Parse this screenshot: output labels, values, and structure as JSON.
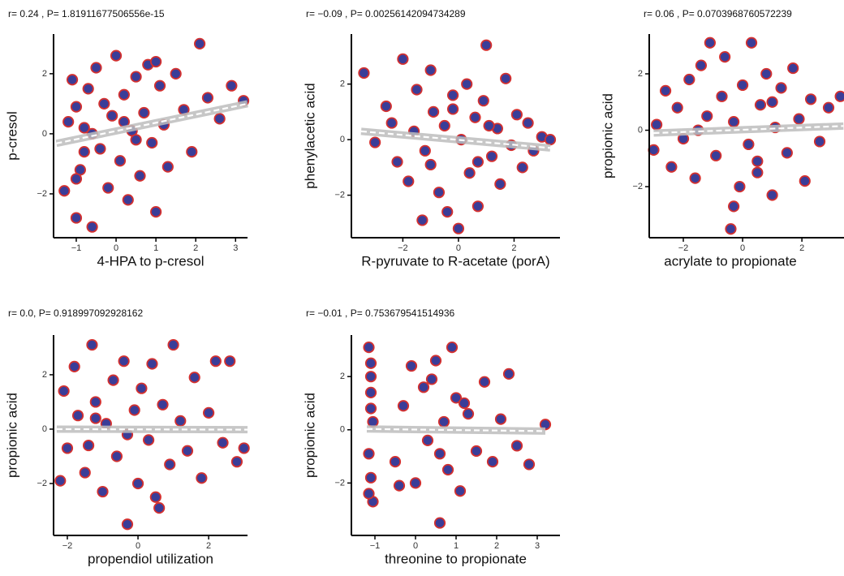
{
  "chart_data": [
    {
      "type": "scatter",
      "title": "r= 0.24 ,  P= 1.81911677506556e-15",
      "xlabel": "4-HPA to p-cresol",
      "ylabel": "p-cresol",
      "color": "#3a3d98",
      "edge_color": "#d4302f",
      "xlim": [
        -1.57,
        3.3
      ],
      "ylim": [
        -3.46,
        3.32
      ],
      "xticks": [
        {
          "value": -1,
          "label": "−1"
        },
        0,
        1,
        2,
        3
      ],
      "yticks": [
        {
          "value": -2,
          "label": "−2"
        },
        0,
        2
      ],
      "x": [
        -1.3,
        -1.2,
        -1.1,
        -1.0,
        -1.0,
        -0.9,
        -0.8,
        -0.7,
        -0.6,
        -0.5,
        -0.4,
        -0.3,
        -0.2,
        -0.1,
        0.0,
        0.1,
        0.2,
        0.3,
        0.4,
        0.5,
        0.6,
        0.7,
        0.8,
        0.9,
        1.0,
        1.1,
        1.2,
        1.3,
        1.5,
        1.7,
        1.9,
        2.1,
        2.3,
        2.6,
        2.9,
        3.2,
        -0.6,
        1.0,
        -1.0,
        0.5,
        0.2,
        -0.8
      ],
      "y": [
        -1.9,
        0.4,
        1.8,
        -2.8,
        0.9,
        -1.2,
        0.2,
        1.5,
        -3.1,
        2.2,
        -0.5,
        1.0,
        -1.8,
        0.6,
        2.6,
        -0.9,
        1.3,
        -2.2,
        0.1,
        1.9,
        -1.4,
        0.7,
        2.3,
        -0.3,
        -2.6,
        1.6,
        0.3,
        -1.1,
        2.0,
        0.8,
        -0.6,
        3.0,
        1.2,
        0.5,
        1.6,
        1.1,
        0.0,
        2.4,
        -1.5,
        -0.2,
        0.4,
        -0.6
      ],
      "fit_x": [
        -1.5,
        3.3
      ],
      "fit_y": [
        -0.32,
        1.0
      ]
    },
    {
      "type": "scatter",
      "title": "r= −0.09 ,  P= 0.00256142094734289",
      "xlabel": "R-pyruvate to R-acetate (porA)",
      "ylabel": "phenylacetic acid",
      "color": "#3a3d98",
      "edge_color": "#d4302f",
      "xlim": [
        -3.85,
        3.65
      ],
      "ylim": [
        -3.53,
        3.8
      ],
      "xticks": [
        {
          "value": -2,
          "label": "−2"
        },
        0,
        2
      ],
      "yticks": [
        {
          "value": -2,
          "label": "−2"
        },
        0,
        2
      ],
      "x": [
        -3.4,
        -3.0,
        -2.6,
        -2.4,
        -2.2,
        -2.0,
        -1.8,
        -1.6,
        -1.5,
        -1.3,
        -1.2,
        -1.0,
        -0.9,
        -0.7,
        -0.5,
        -0.4,
        -0.2,
        0.0,
        0.1,
        0.3,
        0.4,
        0.6,
        0.7,
        0.9,
        1.0,
        1.2,
        1.4,
        1.5,
        1.7,
        1.9,
        2.1,
        2.3,
        2.5,
        2.7,
        3.0,
        3.3,
        -1.0,
        -0.2,
        0.7,
        1.1
      ],
      "y": [
        2.4,
        -0.1,
        1.2,
        0.6,
        -0.8,
        2.9,
        -1.5,
        0.3,
        1.8,
        -2.9,
        -0.4,
        2.5,
        1.0,
        -1.9,
        0.5,
        -2.6,
        1.6,
        -3.2,
        0.0,
        2.0,
        -1.2,
        0.8,
        -2.4,
        1.4,
        3.4,
        -0.6,
        0.4,
        -1.6,
        2.2,
        -0.2,
        0.9,
        -1.0,
        0.6,
        -0.4,
        0.1,
        0.0,
        -0.9,
        1.1,
        -0.8,
        0.5
      ],
      "fit_x": [
        -3.5,
        3.3
      ],
      "fit_y": [
        0.3,
        -0.3
      ]
    },
    {
      "type": "scatter",
      "title": "r= 0.06 ,  P= 0.0703968760572239",
      "xlabel": "acrylate to propionate",
      "ylabel": "propionic acid",
      "color": "#3a3d98",
      "edge_color": "#d4302f",
      "xlim": [
        -3.15,
        3.42
      ],
      "ylim": [
        -3.81,
        3.41
      ],
      "xticks": [
        {
          "value": -2,
          "label": "−2"
        },
        0,
        2
      ],
      "yticks": [
        {
          "value": -2,
          "label": "−2"
        },
        0,
        2
      ],
      "x": [
        -3.0,
        -2.9,
        -2.6,
        -2.4,
        -2.2,
        -2.0,
        -1.8,
        -1.6,
        -1.4,
        -1.2,
        -1.1,
        -0.9,
        -0.7,
        -0.6,
        -0.4,
        -0.3,
        -0.1,
        0.0,
        0.2,
        0.3,
        0.5,
        0.6,
        0.8,
        1.0,
        1.1,
        1.3,
        1.5,
        1.7,
        1.9,
        2.1,
        2.3,
        2.6,
        2.9,
        3.3,
        -0.3,
        0.5,
        -1.5,
        1.0
      ],
      "y": [
        -0.7,
        0.2,
        1.4,
        -1.3,
        0.8,
        -0.3,
        1.8,
        -1.7,
        2.3,
        0.5,
        3.1,
        -0.9,
        1.2,
        2.6,
        -3.5,
        0.3,
        -2.0,
        1.6,
        -0.5,
        3.1,
        -1.1,
        0.9,
        2.0,
        -2.3,
        0.1,
        1.5,
        -0.8,
        2.2,
        0.4,
        -1.8,
        1.1,
        -0.4,
        0.8,
        1.2,
        -2.7,
        -1.5,
        0.0,
        1.0
      ],
      "fit_x": [
        -3.0,
        3.4
      ],
      "fit_y": [
        -0.1,
        0.15
      ]
    },
    {
      "type": "scatter",
      "title": "r= 0.0,  P= 0.918997092928162",
      "xlabel": "propendiol utilization",
      "ylabel": "propionic acid",
      "color": "#3a3d98",
      "edge_color": "#d4302f",
      "xlim": [
        -2.39,
        3.1
      ],
      "ylim": [
        -3.91,
        3.46
      ],
      "xticks": [
        {
          "value": -2,
          "label": "−2"
        },
        0,
        2
      ],
      "yticks": [
        {
          "value": -2,
          "label": "−2"
        },
        0,
        2
      ],
      "x": [
        -2.2,
        -2.1,
        -2.0,
        -1.8,
        -1.7,
        -1.5,
        -1.3,
        -1.2,
        -1.0,
        -0.9,
        -0.7,
        -0.6,
        -0.4,
        -0.3,
        -0.1,
        0.0,
        0.1,
        0.3,
        0.4,
        0.6,
        0.7,
        0.9,
        1.0,
        1.2,
        1.4,
        1.6,
        1.8,
        2.0,
        2.2,
        2.4,
        2.6,
        2.8,
        3.0,
        -0.3,
        0.5,
        -1.4,
        -1.2
      ],
      "y": [
        -1.9,
        1.4,
        -0.7,
        2.3,
        0.5,
        -1.6,
        3.1,
        1.0,
        -2.3,
        0.2,
        1.8,
        -1.0,
        2.5,
        -3.5,
        0.7,
        -2.0,
        1.5,
        -0.4,
        2.4,
        -2.9,
        0.9,
        -1.3,
        3.1,
        0.3,
        -0.8,
        1.9,
        -1.8,
        0.6,
        2.5,
        -0.5,
        2.5,
        -1.2,
        -0.7,
        -0.2,
        -2.5,
        -0.6,
        0.4
      ],
      "fit_x": [
        -2.3,
        3.1
      ],
      "fit_y": [
        0.0,
        -0.02
      ]
    },
    {
      "type": "scatter",
      "title": "r= −0.01 ,  P= 0.753679541514936",
      "xlabel": "threonine to propionate",
      "ylabel": "propionic acid",
      "color": "#3a3d98",
      "edge_color": "#d4302f",
      "xlim": [
        -1.58,
        3.56
      ],
      "ylim": [
        -3.97,
        3.56
      ],
      "xticks": [
        {
          "value": -1,
          "label": "−1"
        },
        0,
        1,
        2,
        3
      ],
      "yticks": [
        {
          "value": -2,
          "label": "−2"
        },
        0,
        2
      ],
      "x": [
        -1.15,
        -1.1,
        -1.1,
        -1.05,
        -1.15,
        -1.1,
        -1.05,
        -1.1,
        -1.15,
        -1.1,
        -0.5,
        -0.3,
        -0.1,
        0.0,
        0.2,
        0.3,
        0.5,
        0.6,
        0.7,
        0.8,
        0.9,
        1.0,
        1.1,
        1.3,
        1.5,
        1.7,
        1.9,
        2.1,
        2.3,
        2.5,
        2.8,
        3.2,
        0.6,
        1.2,
        -0.4,
        0.4
      ],
      "y": [
        3.1,
        2.5,
        1.4,
        0.3,
        -0.9,
        -1.8,
        -2.7,
        2.0,
        -2.4,
        0.8,
        -1.2,
        0.9,
        2.4,
        -2.0,
        1.6,
        -0.4,
        2.6,
        -3.5,
        0.3,
        -1.5,
        3.1,
        1.2,
        -2.3,
        0.6,
        -0.8,
        1.8,
        -1.2,
        0.4,
        2.1,
        -0.6,
        -1.3,
        0.2,
        -0.9,
        1.0,
        -2.1,
        1.9
      ],
      "fit_x": [
        -1.2,
        3.2
      ],
      "fit_y": [
        0.03,
        -0.05
      ]
    }
  ]
}
